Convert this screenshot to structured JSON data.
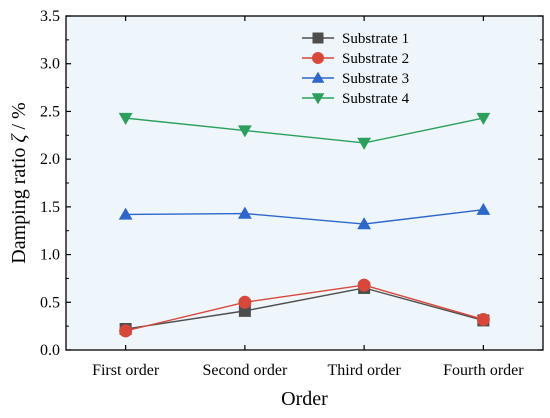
{
  "chart_data": {
    "type": "line",
    "categories": [
      "First order",
      "Second order",
      "Third order",
      "Fourth order"
    ],
    "xlabel": "Order",
    "ylabel_main": "Damping ratio ",
    "ylabel_symbol": "ζ",
    "ylabel_unit": " / %",
    "ylim": [
      0.0,
      3.5
    ],
    "yticks": [
      "0.0",
      "0.5",
      "1.0",
      "1.5",
      "2.0",
      "2.5",
      "3.0",
      "3.5"
    ],
    "grid": false,
    "legend_position": "top-right",
    "plot_background": "#eef6fc",
    "series": [
      {
        "name": "Substrate 1",
        "color": "#4d4d4d",
        "marker": "square",
        "values": [
          0.22,
          0.41,
          0.65,
          0.31
        ]
      },
      {
        "name": "Substrate 2",
        "color": "#d9473b",
        "marker": "circle",
        "values": [
          0.2,
          0.5,
          0.68,
          0.32
        ]
      },
      {
        "name": "Substrate 3",
        "color": "#2d66cc",
        "marker": "triangle-up",
        "values": [
          1.42,
          1.43,
          1.32,
          1.47
        ]
      },
      {
        "name": "Substrate 4",
        "color": "#2aa05a",
        "marker": "triangle-down",
        "values": [
          2.43,
          2.3,
          2.17,
          2.43
        ]
      }
    ]
  }
}
